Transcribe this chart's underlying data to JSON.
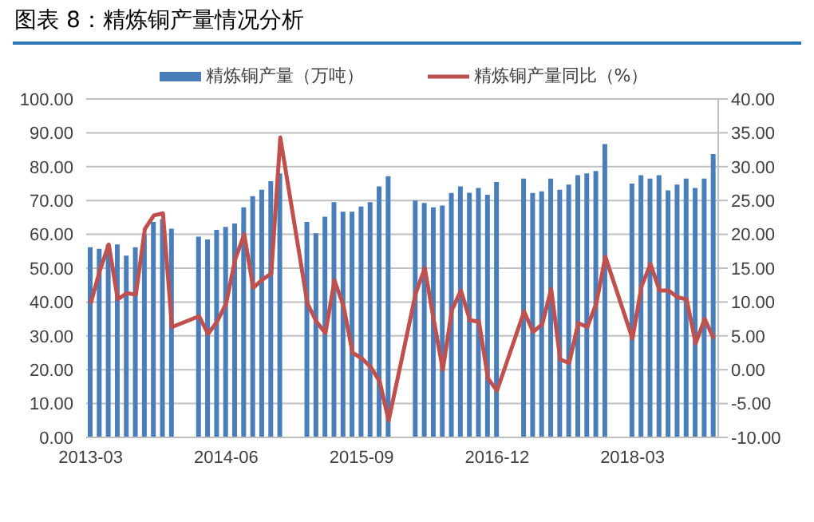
{
  "chart_data": {
    "type": "bar",
    "title": "图表 8：精炼铜产量情况分析",
    "categories": [
      "2013-03",
      null,
      null,
      null,
      null,
      null,
      null,
      null,
      null,
      null,
      null,
      null,
      null,
      null,
      null,
      "2014-06",
      null,
      null,
      null,
      null,
      null,
      null,
      null,
      null,
      null,
      null,
      null,
      null,
      null,
      null,
      "2015-09",
      null,
      null,
      null,
      null,
      null,
      null,
      null,
      null,
      null,
      null,
      null,
      null,
      null,
      null,
      "2016-12",
      null,
      null,
      null,
      null,
      null,
      null,
      null,
      null,
      null,
      null,
      null,
      null,
      null,
      null,
      "2018-03",
      null,
      null,
      null,
      null,
      null,
      null,
      null,
      null,
      null
    ],
    "series": [
      {
        "name": "精炼铜产量（万吨）",
        "color": "#4a7ebb",
        "values": [
          56.2,
          55.7,
          57,
          57,
          53.7,
          56.2,
          60,
          63.7,
          64.5,
          61.7,
          null,
          null,
          59.3,
          58.5,
          61.3,
          62.2,
          63.2,
          68,
          71.3,
          73.2,
          75.7,
          78,
          null,
          null,
          63.7,
          60.3,
          65.2,
          69.5,
          66.7,
          66.7,
          68.2,
          69.5,
          74.2,
          77.2,
          null,
          null,
          70,
          69.3,
          68,
          68.5,
          72.2,
          74.2,
          72.3,
          73.7,
          71.7,
          75.5,
          null,
          null,
          76.5,
          72.2,
          72.7,
          76.5,
          73.2,
          74.7,
          77.5,
          78,
          78.7,
          86.7,
          null,
          null,
          75,
          77.5,
          76.5,
          77.5,
          73,
          74.7,
          76.5,
          73.7,
          76.5,
          83.7
        ]
      },
      {
        "name": "精炼铜产量同比（%）",
        "type": "line",
        "axis": "y2",
        "color": "#c0504d",
        "values": [
          9.8,
          14.6,
          18.5,
          10.4,
          11.3,
          11.1,
          20.8,
          22.8,
          23.1,
          6.3,
          null,
          null,
          7.9,
          5.3,
          7.1,
          9.8,
          16.3,
          20,
          12.1,
          13.3,
          14.2,
          34.3,
          null,
          null,
          9.8,
          7.1,
          5.4,
          13.2,
          9.4,
          2.5,
          1.7,
          0.4,
          -1.7,
          -7.5,
          null,
          null,
          11.3,
          15,
          7.3,
          0,
          8.8,
          11.7,
          7.3,
          7.1,
          -1.3,
          -3.1,
          null,
          null,
          8.6,
          5.6,
          6.7,
          11.9,
          1.5,
          1,
          6.9,
          6.3,
          9.8,
          16.7,
          null,
          null,
          4.6,
          12.3,
          15.6,
          11.7,
          11.7,
          10.7,
          10.4,
          3.9,
          7.5,
          4.6
        ]
      }
    ],
    "ylim": [
      0,
      100
    ],
    "yticks": [
      {
        "value": 0,
        "label": "0.00"
      },
      {
        "value": 10,
        "label": "10.00"
      },
      {
        "value": 20,
        "label": "20.00"
      },
      {
        "value": 30,
        "label": "30.00"
      },
      {
        "value": 40,
        "label": "40.00"
      },
      {
        "value": 50,
        "label": "50.00"
      },
      {
        "value": 60,
        "label": "60.00"
      },
      {
        "value": 70,
        "label": "70.00"
      },
      {
        "value": 80,
        "label": "80.00"
      },
      {
        "value": 90,
        "label": "90.00"
      },
      {
        "value": 100,
        "label": "100.00"
      }
    ],
    "y2lim": [
      -10,
      40
    ],
    "y2ticks": [
      {
        "value": -10,
        "label": "-10.00"
      },
      {
        "value": -5,
        "label": "-5.00"
      },
      {
        "value": 0,
        "label": "0.00"
      },
      {
        "value": 5,
        "label": "5.00"
      },
      {
        "value": 10,
        "label": "10.00"
      },
      {
        "value": 15,
        "label": "15.00"
      },
      {
        "value": 20,
        "label": "20.00"
      },
      {
        "value": 25,
        "label": "25.00"
      },
      {
        "value": 30,
        "label": "30.00"
      },
      {
        "value": 35,
        "label": "35.00"
      },
      {
        "value": 40,
        "label": "40.00"
      }
    ],
    "grid": "y",
    "legend": "top",
    "marker": "none",
    "line_style": "solid"
  }
}
